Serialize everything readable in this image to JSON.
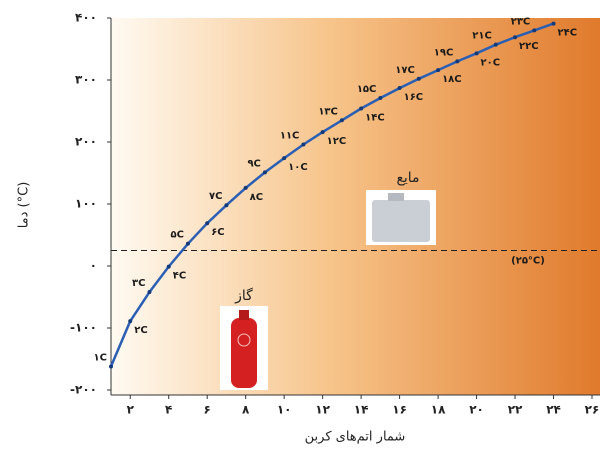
{
  "chart_data": {
    "type": "line",
    "x_label": "شمار اتم‌های کربن",
    "y_label": "دما (°C)",
    "x": [
      1,
      2,
      3,
      4,
      5,
      6,
      7,
      8,
      9,
      10,
      11,
      12,
      13,
      14,
      15,
      16,
      17,
      18,
      19,
      20,
      21,
      22,
      23,
      24
    ],
    "series": [
      {
        "color": "#2b5fb4",
        "values": [
          -162,
          -89,
          -42,
          -1,
          36,
          69,
          98,
          126,
          151,
          174,
          196,
          216,
          235,
          254,
          271,
          287,
          302,
          316,
          330,
          343,
          357,
          369,
          380,
          391
        ]
      }
    ],
    "point_labels": [
      "۱C",
      "۲C",
      "۳C",
      "۴C",
      "۵C",
      "۶C",
      "۷C",
      "۸C",
      "۹C",
      "۱۰C",
      "۱۱C",
      "۱۲C",
      "۱۳C",
      "۱۴C",
      "۱۵C",
      "۱۶C",
      "۱۷C",
      "۱۸C",
      "۱۹C",
      "۲۰C",
      "۲۱C",
      "۲۲C",
      "۲۳C",
      "۲۴C"
    ],
    "xlim": [
      1,
      26
    ],
    "xticks": [
      {
        "value": 2,
        "label": "۲"
      },
      {
        "value": 4,
        "label": "۴"
      },
      {
        "value": 6,
        "label": "۶"
      },
      {
        "value": 8,
        "label": "۸"
      },
      {
        "value": 10,
        "label": "۱۰"
      },
      {
        "value": 12,
        "label": "۱۲"
      },
      {
        "value": 14,
        "label": "۱۴"
      },
      {
        "value": 16,
        "label": "۱۶"
      },
      {
        "value": 18,
        "label": "۱۸"
      },
      {
        "value": 20,
        "label": "۲۰"
      },
      {
        "value": 22,
        "label": "۲۲"
      },
      {
        "value": 24,
        "label": "۲۴"
      },
      {
        "value": 26,
        "label": "۲۶"
      }
    ],
    "ylim": [
      -200,
      400
    ],
    "yticks": [
      {
        "value": -200,
        "label": "-۲۰۰"
      },
      {
        "value": -100,
        "label": "-۱۰۰"
      },
      {
        "value": 0,
        "label": "۰"
      },
      {
        "value": 100,
        "label": "۱۰۰"
      },
      {
        "value": 200,
        "label": "۲۰۰"
      },
      {
        "value": 300,
        "label": "۳۰۰"
      },
      {
        "value": 400,
        "label": "۴۰۰"
      }
    ],
    "reference_line": {
      "value": 25,
      "label": "(۲۵°C)"
    },
    "annotations": [
      "گاز",
      "مایع"
    ]
  }
}
